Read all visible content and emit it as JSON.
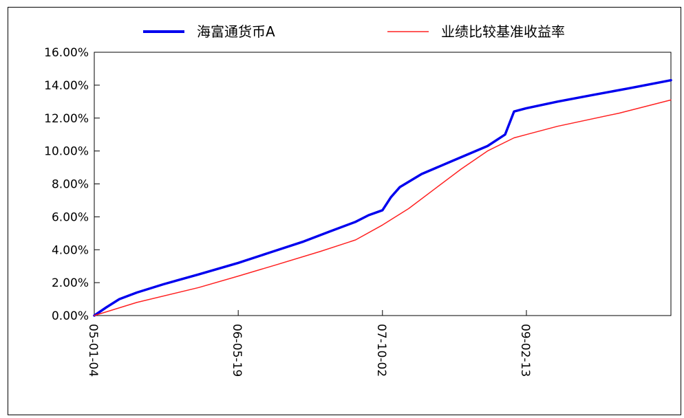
{
  "chart_data": {
    "type": "line",
    "title": "",
    "xlabel": "",
    "ylabel": "",
    "x_range": [
      "2005-01-04",
      "2010-06-30"
    ],
    "y_ticks": [
      "0.00%",
      "2.00%",
      "4.00%",
      "6.00%",
      "8.00%",
      "10.00%",
      "12.00%",
      "14.00%",
      "16.00%"
    ],
    "ylim": [
      0,
      16
    ],
    "x_ticks": [
      {
        "date": "2005-01-04",
        "label": "05-01-04"
      },
      {
        "date": "2006-05-19",
        "label": "06-05-19"
      },
      {
        "date": "2007-10-02",
        "label": "07-10-02"
      },
      {
        "date": "2009-02-13",
        "label": "09-02-13"
      }
    ],
    "legend_position": "top",
    "grid": false,
    "series": [
      {
        "name": "海富通货币A",
        "color": "#0000ee",
        "x": [
          "2005-01-04",
          "2005-02-15",
          "2005-04-01",
          "2005-06-01",
          "2005-09-01",
          "2006-01-01",
          "2006-05-19",
          "2006-09-01",
          "2007-01-01",
          "2007-04-01",
          "2007-07-01",
          "2007-08-15",
          "2007-10-02",
          "2007-11-01",
          "2007-12-01",
          "2008-02-15",
          "2008-06-01",
          "2008-10-01",
          "2008-12-01",
          "2009-01-01",
          "2009-02-13",
          "2009-06-01",
          "2009-10-01",
          "2010-02-01",
          "2010-06-30"
        ],
        "y": [
          0.0,
          0.5,
          1.0,
          1.4,
          1.9,
          2.5,
          3.2,
          3.8,
          4.5,
          5.1,
          5.7,
          6.1,
          6.4,
          7.2,
          7.8,
          8.6,
          9.4,
          10.3,
          11.0,
          12.4,
          12.6,
          13.0,
          13.4,
          13.8,
          14.3
        ]
      },
      {
        "name": "业绩比较基准收益率",
        "color": "#ff2020",
        "x": [
          "2005-01-04",
          "2005-06-01",
          "2006-01-01",
          "2006-05-19",
          "2006-10-01",
          "2007-03-01",
          "2007-07-01",
          "2007-10-02",
          "2008-01-01",
          "2008-04-01",
          "2008-07-01",
          "2008-10-01",
          "2009-01-01",
          "2009-02-13",
          "2009-06-01",
          "2010-01-01",
          "2010-06-30"
        ],
        "y": [
          0.0,
          0.8,
          1.7,
          2.4,
          3.1,
          3.9,
          4.6,
          5.5,
          6.5,
          7.7,
          8.9,
          10.0,
          10.8,
          11.0,
          11.5,
          12.3,
          13.1
        ]
      }
    ]
  }
}
